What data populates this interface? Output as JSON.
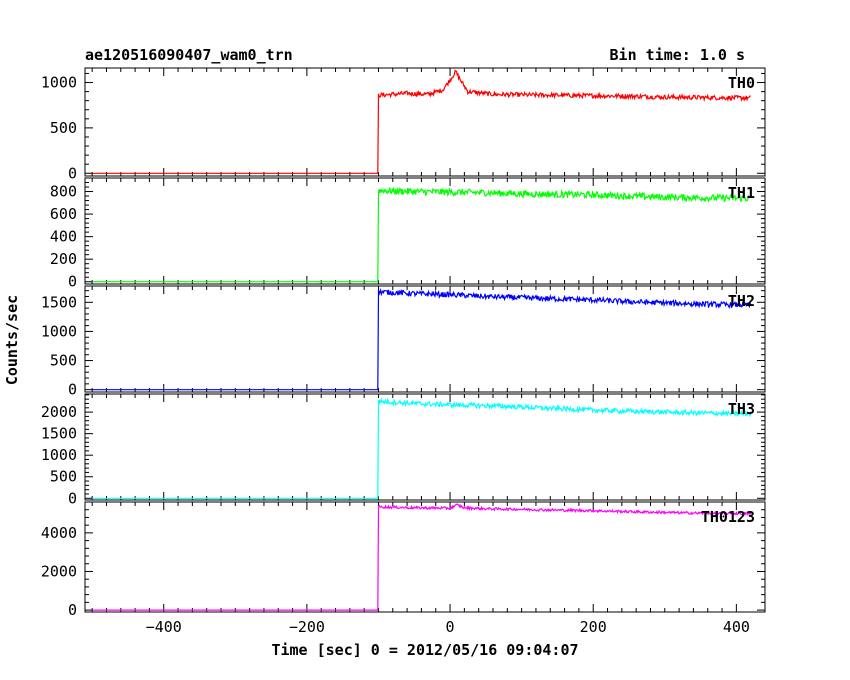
{
  "header": {
    "title": "ae120516090407_wam0_trn",
    "bin_time": "Bin time: 1.0 s"
  },
  "chart_data": {
    "type": "line",
    "title": "ae120516090407_wam0_trn",
    "subtitle": "Bin time: 1.0 s",
    "xlabel": "Time [sec] 0 = 2012/05/16 09:04:07",
    "ylabel": "Counts/sec",
    "xlim": [
      -510,
      440
    ],
    "x_ticks": [
      -400,
      -200,
      0,
      200,
      400
    ],
    "x_tick_labels": [
      "−400",
      "−200",
      "0",
      "200",
      "400"
    ],
    "x_range_data": [
      -500,
      420
    ],
    "onset_time": -100,
    "grid": false,
    "panels": [
      {
        "name": "TH0",
        "color": "#ff0000",
        "ylim": [
          -30,
          1160
        ],
        "y_ticks": [
          0,
          500,
          1000
        ],
        "y_tick_labels": [
          "0",
          "500",
          "1000"
        ],
        "baseline": 0,
        "points": [
          [
            -500,
            0
          ],
          [
            -101,
            0
          ],
          [
            -100,
            860
          ],
          [
            -60,
            880
          ],
          [
            -30,
            870
          ],
          [
            -10,
            920
          ],
          [
            0,
            1030
          ],
          [
            8,
            1120
          ],
          [
            15,
            1020
          ],
          [
            25,
            900
          ],
          [
            60,
            870
          ],
          [
            100,
            865
          ],
          [
            150,
            860
          ],
          [
            200,
            855
          ],
          [
            250,
            850
          ],
          [
            300,
            840
          ],
          [
            350,
            835
          ],
          [
            420,
            830
          ]
        ],
        "noise": 25
      },
      {
        "name": "TH1",
        "color": "#00ff00",
        "ylim": [
          -20,
          920
        ],
        "y_ticks": [
          0,
          200,
          400,
          600,
          800
        ],
        "y_tick_labels": [
          "0",
          "200",
          "400",
          "600",
          "800"
        ],
        "baseline": 0,
        "points": [
          [
            -500,
            0
          ],
          [
            -101,
            0
          ],
          [
            -100,
            810
          ],
          [
            -50,
            800
          ],
          [
            0,
            795
          ],
          [
            50,
            790
          ],
          [
            100,
            780
          ],
          [
            150,
            775
          ],
          [
            200,
            770
          ],
          [
            250,
            760
          ],
          [
            300,
            750
          ],
          [
            350,
            745
          ],
          [
            420,
            740
          ]
        ],
        "noise": 30
      },
      {
        "name": "TH2",
        "color": "#0000ff",
        "ylim": [
          -40,
          1780
        ],
        "y_ticks": [
          0,
          500,
          1000,
          1500
        ],
        "y_tick_labels": [
          "0",
          "500",
          "1000",
          "1500"
        ],
        "baseline": 0,
        "points": [
          [
            -500,
            0
          ],
          [
            -101,
            0
          ],
          [
            -100,
            1680
          ],
          [
            -50,
            1650
          ],
          [
            0,
            1630
          ],
          [
            50,
            1600
          ],
          [
            100,
            1580
          ],
          [
            150,
            1560
          ],
          [
            200,
            1540
          ],
          [
            250,
            1510
          ],
          [
            300,
            1490
          ],
          [
            350,
            1470
          ],
          [
            420,
            1450
          ]
        ],
        "noise": 45
      },
      {
        "name": "TH3",
        "color": "#00ffff",
        "ylim": [
          -40,
          2420
        ],
        "y_ticks": [
          0,
          500,
          1000,
          1500,
          2000
        ],
        "y_tick_labels": [
          "0",
          "500",
          "1000",
          "1500",
          "2000"
        ],
        "baseline": 0,
        "points": [
          [
            -500,
            0
          ],
          [
            -101,
            0
          ],
          [
            -100,
            2250
          ],
          [
            -50,
            2200
          ],
          [
            0,
            2170
          ],
          [
            50,
            2150
          ],
          [
            100,
            2120
          ],
          [
            150,
            2080
          ],
          [
            200,
            2050
          ],
          [
            250,
            2020
          ],
          [
            300,
            2000
          ],
          [
            350,
            1980
          ],
          [
            420,
            1960
          ]
        ],
        "noise": 55
      },
      {
        "name": "TH0123",
        "color": "#ff00ff",
        "ylim": [
          -100,
          5600
        ],
        "y_ticks": [
          0,
          2000,
          4000
        ],
        "y_tick_labels": [
          "0",
          "2000",
          "4000"
        ],
        "baseline": 0,
        "points": [
          [
            -500,
            0
          ],
          [
            -101,
            0
          ],
          [
            -100,
            5350
          ],
          [
            -50,
            5300
          ],
          [
            0,
            5280
          ],
          [
            10,
            5450
          ],
          [
            20,
            5300
          ],
          [
            50,
            5250
          ],
          [
            100,
            5220
          ],
          [
            150,
            5180
          ],
          [
            200,
            5150
          ],
          [
            250,
            5100
          ],
          [
            300,
            5060
          ],
          [
            350,
            5020
          ],
          [
            420,
            5000
          ]
        ],
        "noise": 65
      }
    ]
  }
}
